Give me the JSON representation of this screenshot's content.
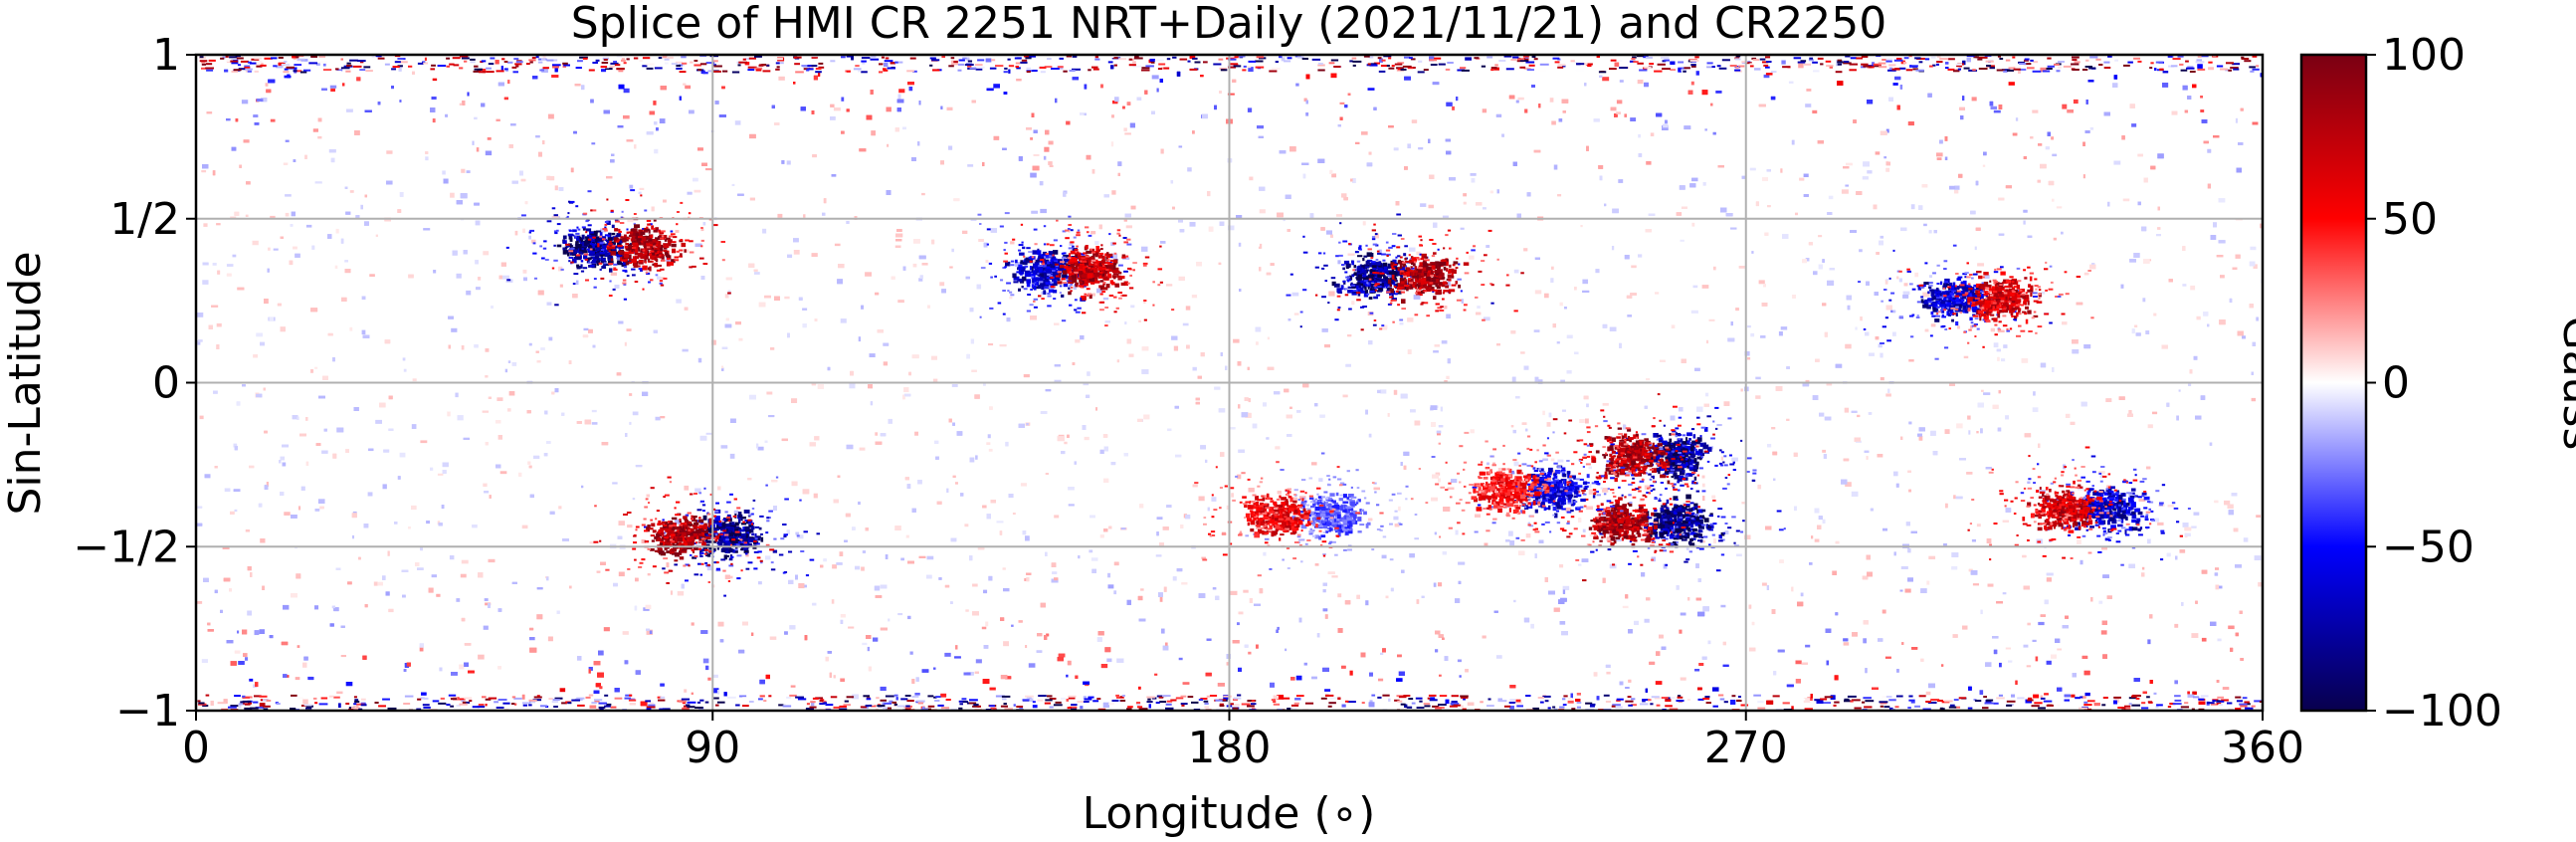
{
  "chart_data": {
    "type": "heatmap",
    "title": "Splice of HMI CR 2251 NRT+Daily (2021/11/21) and CR2250",
    "xlabel": "Longitude (∘)",
    "ylabel": "Sin-Latitude",
    "xlim": [
      0,
      360
    ],
    "ylim": [
      -1,
      1
    ],
    "xticks": [
      {
        "value": 0,
        "label": "0"
      },
      {
        "value": 90,
        "label": "90"
      },
      {
        "value": 180,
        "label": "180"
      },
      {
        "value": 270,
        "label": "270"
      },
      {
        "value": 360,
        "label": "360"
      }
    ],
    "yticks": [
      {
        "value": -1,
        "label": "−1"
      },
      {
        "value": -0.5,
        "label": "−1/2"
      },
      {
        "value": 0,
        "label": "0"
      },
      {
        "value": 0.5,
        "label": "1/2"
      },
      {
        "value": 1,
        "label": "1"
      }
    ],
    "grid": true,
    "colorbar": {
      "label": "Gauss",
      "range": [
        -100,
        100
      ],
      "ticks": [
        {
          "value": 100,
          "label": "100"
        },
        {
          "value": 50,
          "label": "50"
        },
        {
          "value": 0,
          "label": "0"
        },
        {
          "value": -50,
          "label": "−50"
        },
        {
          "value": -100,
          "label": "−100"
        }
      ],
      "colormap": [
        "#08004d",
        "#0000ff",
        "#ffffff",
        "#ff0000",
        "#7a0013"
      ]
    },
    "active_regions": [
      {
        "lon": 75,
        "sinlat": 0.42,
        "leading": -100,
        "trailing": 100,
        "leading_lon": 69,
        "trailing_lon": 78
      },
      {
        "lon": 153,
        "sinlat": 0.35,
        "leading": -80,
        "trailing": 90,
        "leading_lon": 148,
        "trailing_lon": 156
      },
      {
        "lon": 210,
        "sinlat": 0.33,
        "leading": -100,
        "trailing": 100,
        "leading_lon": 205,
        "trailing_lon": 214
      },
      {
        "lon": 310,
        "sinlat": 0.26,
        "leading": -80,
        "trailing": 80,
        "leading_lon": 306,
        "trailing_lon": 314
      },
      {
        "lon": 89,
        "sinlat": -0.46,
        "leading": -100,
        "trailing": 100,
        "leading_lon": 93,
        "trailing_lon": 84
      },
      {
        "lon": 254,
        "sinlat": -0.22,
        "leading": -100,
        "trailing": 100,
        "leading_lon": 258,
        "trailing_lon": 250
      },
      {
        "lon": 253,
        "sinlat": -0.42,
        "leading": -100,
        "trailing": 100,
        "leading_lon": 258,
        "trailing_lon": 248
      },
      {
        "lon": 232,
        "sinlat": -0.32,
        "leading": -70,
        "trailing": 60,
        "leading_lon": 236,
        "trailing_lon": 228
      },
      {
        "lon": 330,
        "sinlat": -0.38,
        "leading": -80,
        "trailing": 80,
        "leading_lon": 333,
        "trailing_lon": 325
      },
      {
        "lon": 192,
        "sinlat": -0.4,
        "leading": -40,
        "trailing": 70,
        "leading_lon": 198,
        "trailing_lon": 188
      }
    ]
  }
}
